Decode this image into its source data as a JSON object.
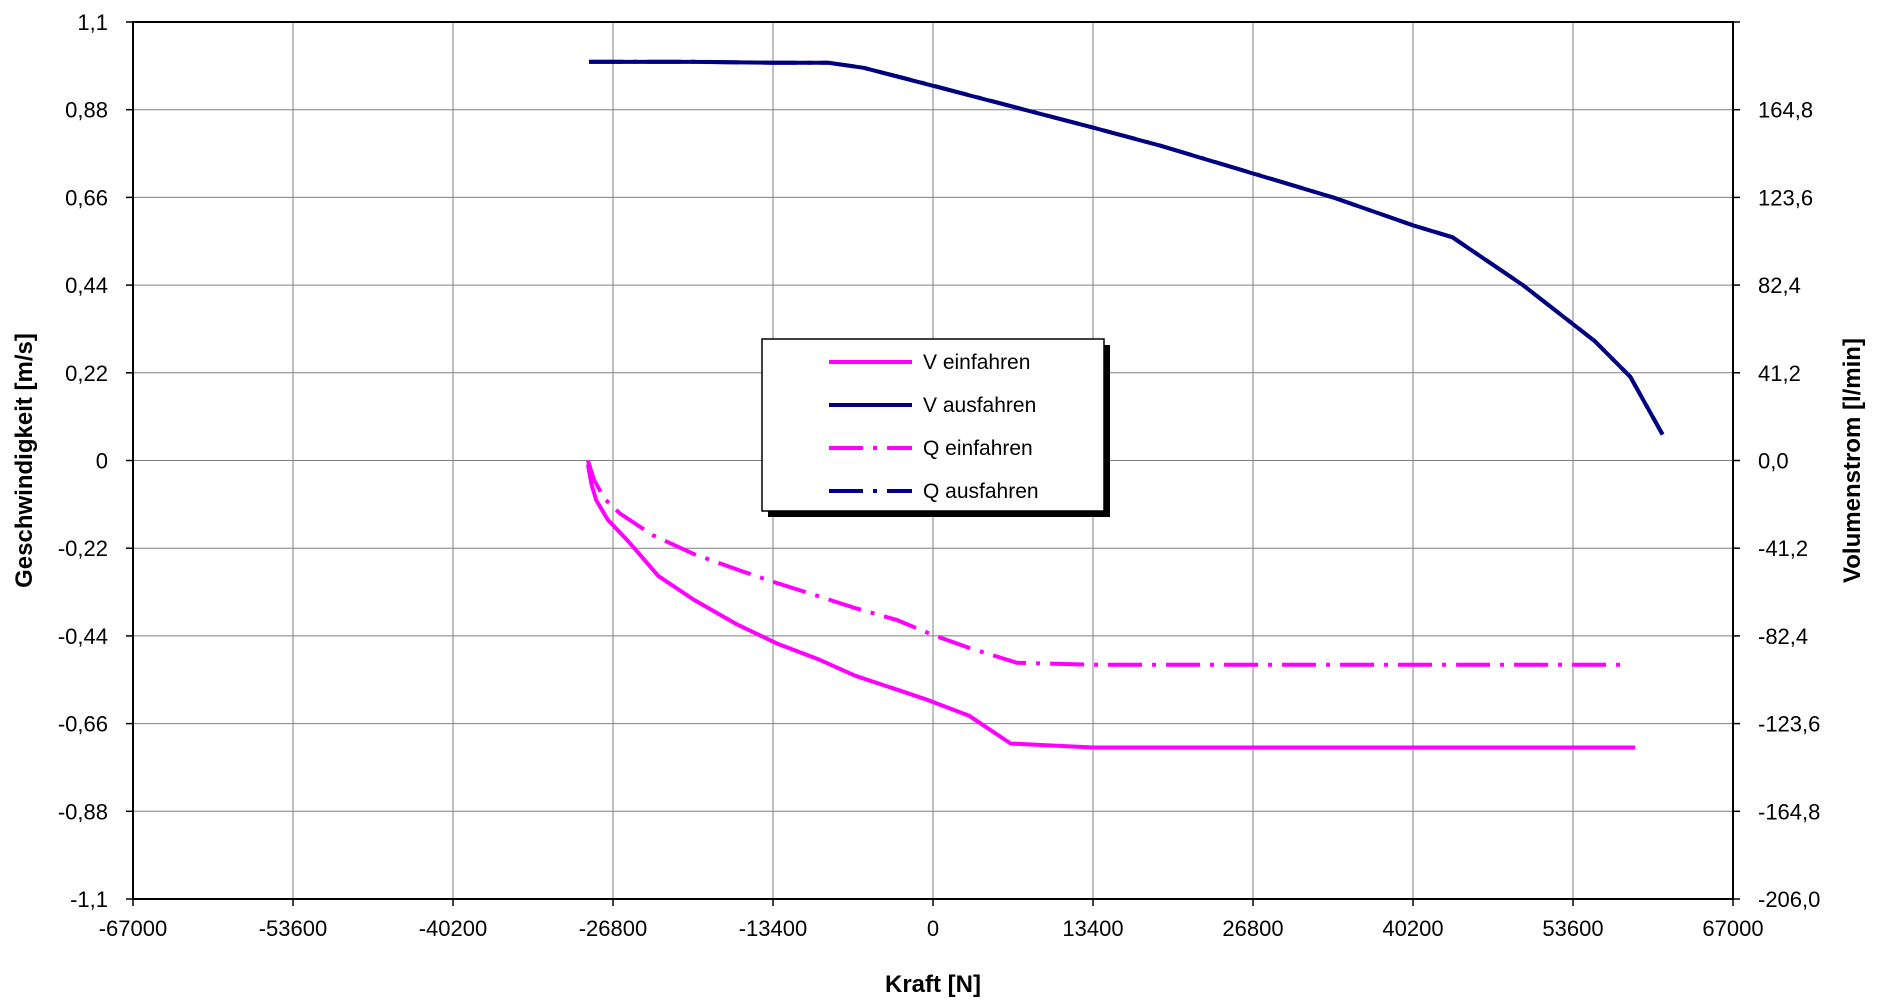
{
  "chart_data": {
    "type": "line",
    "title": "",
    "xlabel": "Kraft [N]",
    "ylabel": "Geschwindigkeit [m/s]",
    "y2label": "Volumenstrom [l/min]",
    "xlim": [
      -67000,
      67000
    ],
    "ylim": [
      -1.1,
      1.1
    ],
    "y2lim": [
      -206.0,
      206.0
    ],
    "grid": true,
    "legend_position": "center",
    "x_ticks": [
      -67000,
      -53600,
      -40200,
      -26800,
      -13400,
      0,
      13400,
      26800,
      40200,
      53600,
      67000
    ],
    "x_tick_labels": [
      "-67000",
      "-53600",
      "-40200",
      "-26800",
      "-13400",
      "0",
      "13400",
      "26800",
      "40200",
      "53600",
      "67000"
    ],
    "y_ticks": [
      -1.1,
      -0.88,
      -0.66,
      -0.44,
      -0.22,
      0,
      0.22,
      0.44,
      0.66,
      0.88,
      1.1
    ],
    "y_tick_labels": [
      "-1,1",
      "-0,88",
      "-0,66",
      "-0,44",
      "-0,22",
      "0",
      "0,22",
      "0,44",
      "0,66",
      "0,88",
      "1,1"
    ],
    "y2_tick_labels": [
      "-206,0",
      "-164,8",
      "-123,6",
      "-82,4",
      "-41,2",
      "0,0",
      "41,2",
      "82,4",
      "123,6",
      "164,8",
      ""
    ],
    "series": [
      {
        "name": "V einfahren",
        "axis": "left",
        "color": "#FF00FF",
        "style": "solid",
        "x": [
          -28900,
          -28600,
          -28200,
          -27200,
          -25600,
          -23000,
          -20000,
          -16500,
          -13000,
          -9500,
          -6500,
          -3500,
          -500,
          3000,
          6500,
          13400,
          20000,
          30000,
          40200,
          50000,
          58800
        ],
        "y": [
          -0.01,
          -0.06,
          -0.1,
          -0.15,
          -0.2,
          -0.29,
          -0.35,
          -0.41,
          -0.46,
          -0.5,
          -0.54,
          -0.57,
          -0.6,
          -0.64,
          -0.71,
          -0.72,
          -0.72,
          -0.72,
          -0.72,
          -0.72,
          -0.72
        ]
      },
      {
        "name": "V ausfahren",
        "axis": "left",
        "color": "#000080",
        "style": "solid",
        "x": [
          -28800,
          -20000,
          -13400,
          -8800,
          -5800,
          0,
          7000,
          13400,
          19000,
          26800,
          33500,
          40200,
          43500,
          49400,
          55400,
          58400,
          61100
        ],
        "y": [
          1.0,
          1.0,
          0.998,
          0.998,
          0.985,
          0.94,
          0.885,
          0.835,
          0.79,
          0.72,
          0.66,
          0.59,
          0.56,
          0.44,
          0.3,
          0.21,
          0.065
        ]
      },
      {
        "name": "Q einfahren",
        "axis": "right",
        "color": "#FF00FF",
        "style": "dashdot",
        "x": [
          -28900,
          -28400,
          -27500,
          -26200,
          -23500,
          -20000,
          -16000,
          -13400,
          -10000,
          -6700,
          -3000,
          0,
          3000,
          7000,
          13400,
          26800,
          40200,
          50000,
          57900
        ],
        "y": [
          0,
          -9,
          -18,
          -25,
          -35,
          -44,
          -52,
          -57,
          -63,
          -69,
          -75,
          -82,
          -88,
          -95,
          -96,
          -96,
          -96,
          -96,
          -96
        ]
      },
      {
        "name": "Q ausfahren",
        "axis": "right",
        "color": "#000080",
        "style": "dashdot",
        "x": [
          -28800,
          -20000,
          -13400,
          -8800,
          -5800,
          0,
          7000,
          13400,
          19000,
          26800,
          33500,
          40200,
          43500,
          49400,
          55400,
          58400,
          61100
        ],
        "y": [
          187.3,
          187.3,
          186.9,
          186.9,
          184.5,
          176.1,
          165.8,
          156.4,
          148.0,
          134.9,
          123.6,
          110.5,
          104.9,
          82.4,
          56.2,
          39.3,
          12.2
        ]
      }
    ]
  }
}
